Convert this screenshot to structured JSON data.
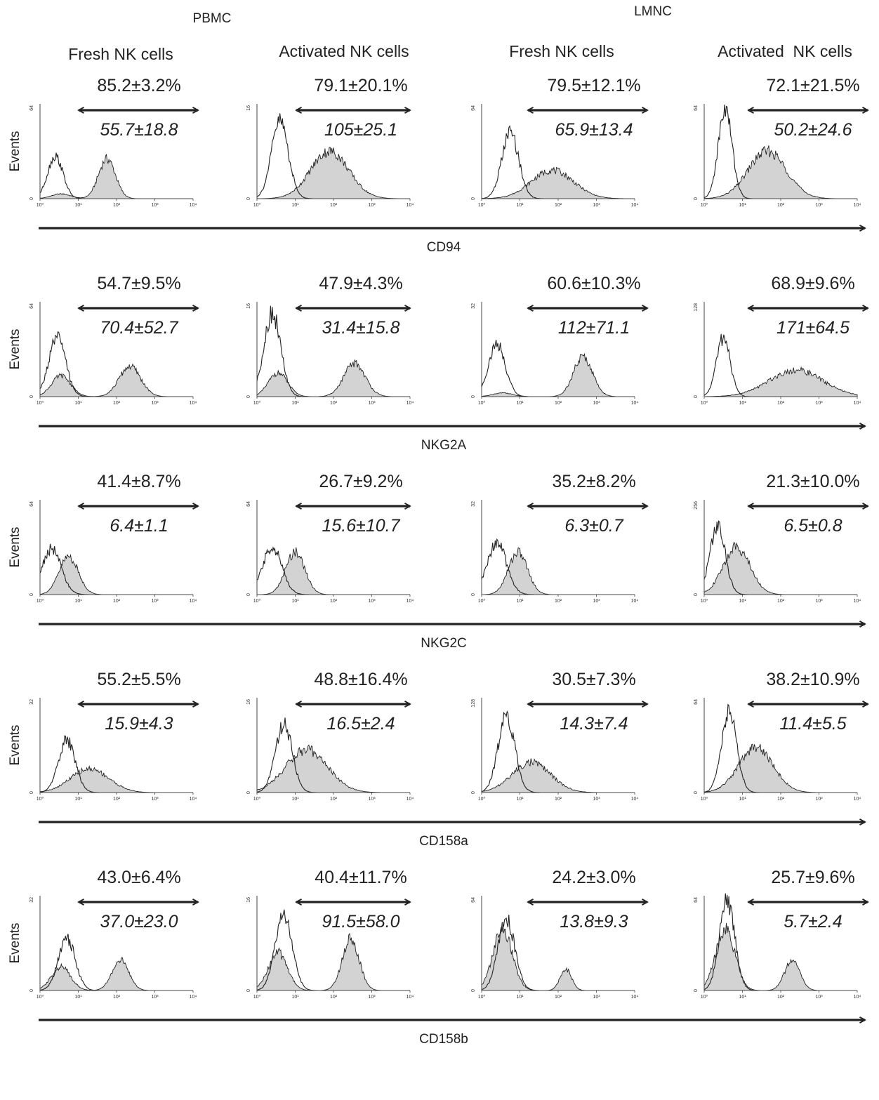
{
  "figure": {
    "groups": [
      "PBMC",
      "LMNC"
    ],
    "columns": [
      "Fresh NK cells",
      "Activated NK cells",
      "Fresh NK cells",
      "Activated  NK cells"
    ],
    "y_label": "Events",
    "x_tick_labels": [
      "10⁰",
      "10¹",
      "10²",
      "10³",
      "10⁴"
    ],
    "colors": {
      "filled_histogram": "#d3d3d3",
      "line": "#222222",
      "arrow": "#222222"
    }
  },
  "chart_data": {
    "type": "histogram-overlay-grid",
    "x_scale": "log",
    "xlim": [
      1,
      10000
    ],
    "rows": [
      {
        "marker": "CD94",
        "panels": [
          {
            "ymax": "64",
            "percent": "85.2±3.2%",
            "mfi": "55.7±18.8",
            "control": {
              "peak_log": 0.4,
              "peak_height": 0.45,
              "width": 0.2
            },
            "stained": {
              "peak_log": 1.75,
              "peak_height": 0.42,
              "width": 0.22,
              "shoulder": 0.05
            }
          },
          {
            "ymax": "16",
            "percent": "79.1±20.1%",
            "mfi": "105±25.1",
            "control": {
              "peak_log": 0.6,
              "peak_height": 0.82,
              "width": 0.22
            },
            "stained": {
              "peak_log": 1.9,
              "peak_height": 0.5,
              "width": 0.5
            }
          },
          {
            "ymax": "64",
            "percent": "79.5±12.1%",
            "mfi": "65.9±13.4",
            "control": {
              "peak_log": 0.75,
              "peak_height": 0.7,
              "width": 0.22
            },
            "stained": {
              "peak_log": 1.85,
              "peak_height": 0.3,
              "width": 0.55
            }
          },
          {
            "ymax": "64",
            "percent": "72.1±21.5%",
            "mfi": "50.2±24.6",
            "control": {
              "peak_log": 0.55,
              "peak_height": 0.95,
              "width": 0.18
            },
            "stained": {
              "peak_log": 1.65,
              "peak_height": 0.5,
              "width": 0.5
            }
          }
        ]
      },
      {
        "marker": "NKG2A",
        "panels": [
          {
            "ymax": "64",
            "percent": "54.7±9.5%",
            "mfi": "70.4±52.7",
            "control": {
              "peak_log": 0.45,
              "peak_height": 0.62,
              "width": 0.22
            },
            "stained": {
              "peak_log": 2.35,
              "peak_height": 0.32,
              "width": 0.28,
              "shoulder": 0.22
            }
          },
          {
            "ymax": "16",
            "percent": "47.9±4.3%",
            "mfi": "31.4±15.8",
            "control": {
              "peak_log": 0.4,
              "peak_height": 0.88,
              "width": 0.22
            },
            "stained": {
              "peak_log": 2.55,
              "peak_height": 0.35,
              "width": 0.28,
              "shoulder": 0.25
            }
          },
          {
            "ymax": "32",
            "percent": "60.6±10.3%",
            "mfi": "112±71.1",
            "control": {
              "peak_log": 0.4,
              "peak_height": 0.55,
              "width": 0.22
            },
            "stained": {
              "peak_log": 2.65,
              "peak_height": 0.42,
              "width": 0.25,
              "shoulder": 0.04
            }
          },
          {
            "ymax": "128",
            "percent": "68.9±9.6%",
            "mfi": "171±64.5",
            "control": {
              "peak_log": 0.5,
              "peak_height": 0.62,
              "width": 0.18
            },
            "stained": {
              "peak_log": 2.4,
              "peak_height": 0.28,
              "width": 0.7
            }
          }
        ]
      },
      {
        "marker": "NKG2C",
        "panels": [
          {
            "ymax": "64",
            "percent": "41.4±8.7%",
            "mfi": "6.4±1.1",
            "control": {
              "peak_log": 0.3,
              "peak_height": 0.48,
              "width": 0.25
            },
            "stained": {
              "peak_log": 0.75,
              "peak_height": 0.4,
              "width": 0.25
            }
          },
          {
            "ymax": "64",
            "percent": "26.7±9.2%",
            "mfi": "15.6±10.7",
            "control": {
              "peak_log": 0.4,
              "peak_height": 0.5,
              "width": 0.25
            },
            "stained": {
              "peak_log": 1.0,
              "peak_height": 0.45,
              "width": 0.25
            }
          },
          {
            "ymax": "32",
            "percent": "35.2±8.2%",
            "mfi": "6.3±0.7",
            "control": {
              "peak_log": 0.4,
              "peak_height": 0.55,
              "width": 0.25
            },
            "stained": {
              "peak_log": 0.95,
              "peak_height": 0.45,
              "width": 0.25
            }
          },
          {
            "ymax": "256",
            "percent": "21.3±10.0%",
            "mfi": "6.5±0.8",
            "control": {
              "peak_log": 0.35,
              "peak_height": 0.72,
              "width": 0.2
            },
            "stained": {
              "peak_log": 0.85,
              "peak_height": 0.5,
              "width": 0.35
            }
          }
        ]
      },
      {
        "marker": "CD158a",
        "panels": [
          {
            "ymax": "32",
            "percent": "55.2±5.5%",
            "mfi": "15.9±4.3",
            "control": {
              "peak_log": 0.7,
              "peak_height": 0.55,
              "width": 0.22
            },
            "stained": {
              "peak_log": 1.3,
              "peak_height": 0.25,
              "width": 0.5
            }
          },
          {
            "ymax": "16",
            "percent": "48.8±16.4%",
            "mfi": "16.5±2.4",
            "control": {
              "peak_log": 0.7,
              "peak_height": 0.72,
              "width": 0.22
            },
            "stained": {
              "peak_log": 1.3,
              "peak_height": 0.45,
              "width": 0.55
            }
          },
          {
            "ymax": "128",
            "percent": "30.5±7.3%",
            "mfi": "14.3±7.4",
            "control": {
              "peak_log": 0.65,
              "peak_height": 0.8,
              "width": 0.22
            },
            "stained": {
              "peak_log": 1.3,
              "peak_height": 0.32,
              "width": 0.5
            }
          },
          {
            "ymax": "64",
            "percent": "38.2±10.9%",
            "mfi": "11.4±5.5",
            "control": {
              "peak_log": 0.65,
              "peak_height": 0.85,
              "width": 0.2
            },
            "stained": {
              "peak_log": 1.35,
              "peak_height": 0.48,
              "width": 0.45
            }
          }
        ]
      },
      {
        "marker": "CD158b",
        "panels": [
          {
            "ymax": "32",
            "percent": "43.0±6.4%",
            "mfi": "37.0±23.0",
            "control": {
              "peak_log": 0.7,
              "peak_height": 0.55,
              "width": 0.22
            },
            "stained": {
              "peak_log": 2.1,
              "peak_height": 0.32,
              "width": 0.22,
              "shoulder": 0.25
            }
          },
          {
            "ymax": "16",
            "percent": "40.4±11.7%",
            "mfi": "91.5±58.0",
            "control": {
              "peak_log": 0.7,
              "peak_height": 0.8,
              "width": 0.22
            },
            "stained": {
              "peak_log": 2.45,
              "peak_height": 0.55,
              "width": 0.22,
              "shoulder": 0.4
            }
          },
          {
            "ymax": "64",
            "percent": "24.2±3.0%",
            "mfi": "13.8±9.3",
            "control": {
              "peak_log": 0.65,
              "peak_height": 0.75,
              "width": 0.22
            },
            "stained": {
              "peak_log": 2.2,
              "peak_height": 0.22,
              "width": 0.15,
              "shoulder": 0.65
            }
          },
          {
            "ymax": "64",
            "percent": "25.7±9.6%",
            "mfi": "5.7±2.4",
            "control": {
              "peak_log": 0.6,
              "peak_height": 0.95,
              "width": 0.2
            },
            "stained": {
              "peak_log": 2.3,
              "peak_height": 0.32,
              "width": 0.2,
              "shoulder": 0.65
            }
          }
        ]
      }
    ]
  }
}
